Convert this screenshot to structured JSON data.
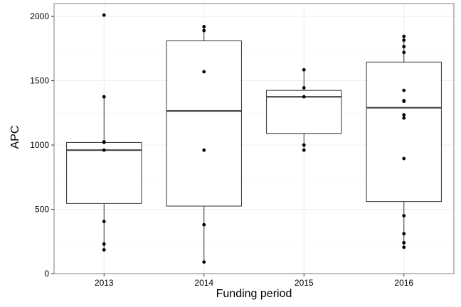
{
  "chart_data": {
    "type": "boxplot",
    "title": "",
    "xlabel": "Funding period",
    "ylabel": "APC",
    "ylim": [
      0,
      2100
    ],
    "y_ticks": [
      0,
      500,
      1000,
      1500,
      2000
    ],
    "grid": true,
    "legend": "none",
    "categories": [
      "2013",
      "2014",
      "2015",
      "2016"
    ],
    "boxes": [
      {
        "category": "2013",
        "min": 185,
        "q1": 545,
        "median": 960,
        "q3": 1020,
        "max": 1375
      },
      {
        "category": "2014",
        "min": 90,
        "q1": 525,
        "median": 1265,
        "q3": 1810,
        "max": 1920
      },
      {
        "category": "2015",
        "min": 960,
        "q1": 1090,
        "median": 1375,
        "q3": 1425,
        "max": 1585
      },
      {
        "category": "2016",
        "min": 205,
        "q1": 560,
        "median": 1290,
        "q3": 1645,
        "max": 1845
      }
    ],
    "points": [
      {
        "category": "2013",
        "values": [
          2010,
          1375,
          1025,
          1020,
          960,
          405,
          230,
          185
        ]
      },
      {
        "category": "2014",
        "values": [
          1920,
          1890,
          1570,
          960,
          380,
          90
        ]
      },
      {
        "category": "2015",
        "values": [
          1585,
          1445,
          1375,
          1000,
          960
        ]
      },
      {
        "category": "2016",
        "values": [
          1845,
          1815,
          1765,
          1720,
          1425,
          1345,
          1340,
          1235,
          1210,
          895,
          450,
          310,
          240,
          205
        ]
      }
    ],
    "colors": {
      "background": "#ffffff",
      "panel_border": "#7f7f7f",
      "grid_major": "#ebebeb",
      "grid_minor": "#f5f5f5",
      "box_stroke": "#333333",
      "point_fill": "#000000"
    }
  }
}
